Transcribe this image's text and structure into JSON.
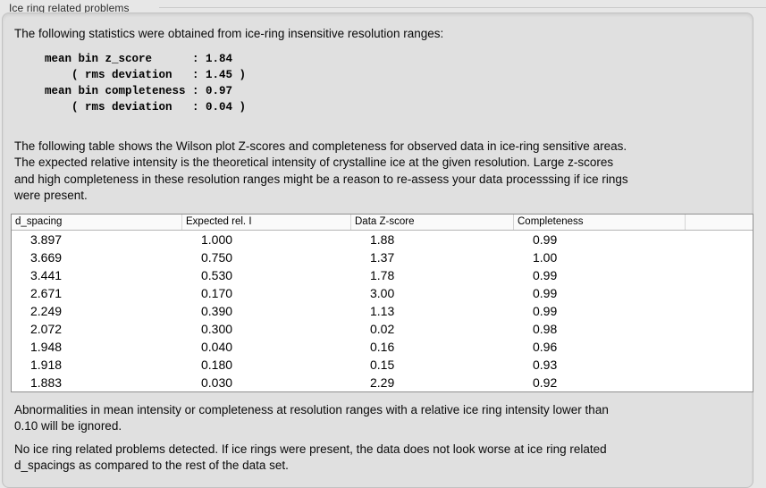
{
  "group": {
    "label": "Ice ring related problems"
  },
  "panel": {
    "intro": "The following statistics were obtained from ice-ring insensitive resolution ranges:",
    "stats_block": "mean bin z_score      : 1.84\n    ( rms deviation   : 1.45 )\nmean bin completeness : 0.97\n    ( rms deviation   : 0.04 )",
    "description": "The following table shows the Wilson plot Z-scores and completeness for observed data in ice-ring sensitive areas.\nThe expected relative intensity is the theoretical intensity of crystalline ice at the given resolution. Large z-scores\nand high completeness in these resolution ranges might be a reason to re-assess your data processsing if ice rings\nwere present.",
    "table": {
      "columns": [
        "d_spacing",
        "Expected rel. I",
        "Data Z-score",
        "Completeness",
        ""
      ],
      "rows": [
        [
          "3.897",
          "1.000",
          "1.88",
          "0.99"
        ],
        [
          "3.669",
          "0.750",
          "1.37",
          "1.00"
        ],
        [
          "3.441",
          "0.530",
          "1.78",
          "0.99"
        ],
        [
          "2.671",
          "0.170",
          "3.00",
          "0.99"
        ],
        [
          "2.249",
          "0.390",
          "1.13",
          "0.99"
        ],
        [
          "2.072",
          "0.300",
          "0.02",
          "0.98"
        ],
        [
          "1.948",
          "0.040",
          "0.16",
          "0.96"
        ],
        [
          "1.918",
          "0.180",
          "0.15",
          "0.93"
        ],
        [
          "1.883",
          "0.030",
          "2.29",
          "0.92"
        ]
      ]
    },
    "note_ignore": "Abnormalities in mean intensity or completeness at resolution ranges with a relative ice ring intensity lower than\n0.10 will be ignored.",
    "conclusion": "No ice ring related problems detected. If ice rings were present, the data does not look worse at ice ring related\nd_spacings as compared to the rest of the data set."
  },
  "colors": {
    "panel_bg": "#e0e0e0",
    "outer_bg": "#e7e7e7",
    "table_border": "#8f8f8f",
    "header_bg": "#fafafa"
  }
}
